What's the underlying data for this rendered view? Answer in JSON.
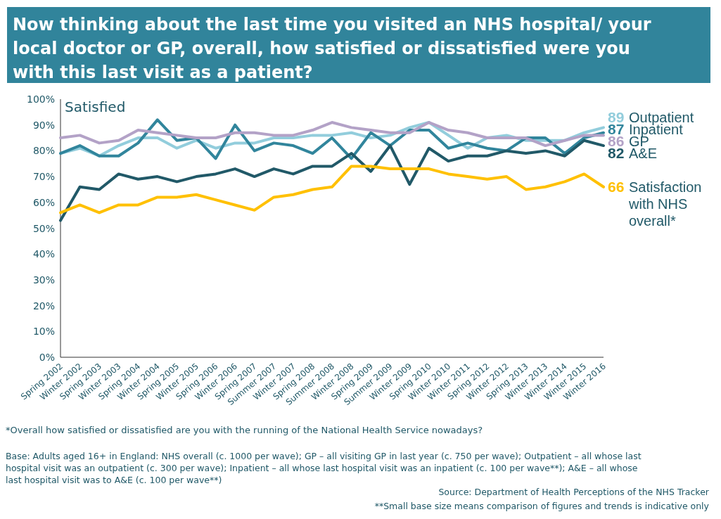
{
  "chart_data": {
    "type": "line",
    "title": "Now thinking about the last time you visited an NHS hospital/ your local doctor or GP, overall, how satisfied or dissatisfied were you with this last visit as a patient?",
    "ylabel": "Satisfied",
    "categories": [
      "Spring 2002",
      "Winter 2002",
      "Spring 2003",
      "Winter 2003",
      "Spring 2004",
      "Winter 2004",
      "Spring 2005",
      "Winter 2005",
      "Spring 2006",
      "Winter 2006",
      "Spring 2007",
      "Summer 2007",
      "Winter 2007",
      "Spring 2008",
      "Summer 2008",
      "Winter 2008",
      "Spring 2009",
      "Summer 2009",
      "Winter 2009",
      "Spring 2010",
      "Winter 2010",
      "Winter 2011",
      "Spring 2012",
      "Winter 2012",
      "Spring 2013",
      "Winter 2013",
      "Winter 2014",
      "Winter 2015",
      "Winter 2016"
    ],
    "ylim": [
      0,
      100
    ],
    "yticks": [
      {
        "value": 0,
        "label": "0%"
      },
      {
        "value": 10,
        "label": "10%"
      },
      {
        "value": 20,
        "label": "20%"
      },
      {
        "value": 30,
        "label": "30%"
      },
      {
        "value": 40,
        "label": "40%"
      },
      {
        "value": 50,
        "label": "50%"
      },
      {
        "value": 60,
        "label": "60%"
      },
      {
        "value": 70,
        "label": "70%"
      },
      {
        "value": 80,
        "label": "80%"
      },
      {
        "value": 90,
        "label": "90%"
      },
      {
        "value": 100,
        "label": "100%"
      }
    ],
    "grid": false,
    "marker": "none",
    "line_style": "solid",
    "series": [
      {
        "name": "Outpatient",
        "color": "#92cddc",
        "values": [
          79,
          81,
          78,
          82,
          85,
          85,
          81,
          84,
          81,
          83,
          83,
          85,
          85,
          86,
          86,
          87,
          85,
          86,
          89,
          91,
          86,
          81,
          85,
          86,
          84,
          84,
          84,
          87,
          89
        ],
        "value_labels": [
          null,
          null,
          null,
          null,
          null,
          null,
          null,
          null,
          null,
          null,
          null,
          null,
          null,
          null,
          null,
          null,
          null,
          null,
          null,
          null,
          null,
          null,
          null,
          null,
          null,
          null,
          null,
          null,
          "89"
        ]
      },
      {
        "name": "Inpatient",
        "color": "#31859c",
        "values": [
          79,
          82,
          78,
          78,
          83,
          92,
          84,
          85,
          77,
          90,
          80,
          83,
          82,
          79,
          85,
          77,
          87,
          82,
          88,
          88,
          81,
          83,
          81,
          80,
          85,
          85,
          79,
          85,
          87
        ],
        "value_labels": [
          null,
          null,
          null,
          null,
          null,
          null,
          null,
          null,
          null,
          null,
          null,
          null,
          null,
          null,
          null,
          null,
          null,
          null,
          null,
          null,
          null,
          null,
          null,
          null,
          null,
          null,
          null,
          null,
          "87"
        ]
      },
      {
        "name": "GP",
        "color": "#b3a2c7",
        "values": [
          85,
          86,
          83,
          84,
          88,
          87,
          86,
          85,
          85,
          87,
          87,
          86,
          86,
          88,
          91,
          89,
          88,
          87,
          87,
          91,
          88,
          87,
          85,
          85,
          85,
          82,
          84,
          86,
          86
        ],
        "value_labels": [
          null,
          null,
          null,
          null,
          null,
          null,
          null,
          null,
          null,
          null,
          null,
          null,
          null,
          null,
          null,
          null,
          null,
          null,
          null,
          null,
          null,
          null,
          null,
          null,
          null,
          null,
          null,
          null,
          "86"
        ]
      },
      {
        "name": "A&E",
        "color": "#215968",
        "values": [
          53,
          66,
          65,
          71,
          69,
          70,
          68,
          70,
          71,
          73,
          70,
          73,
          71,
          74,
          74,
          79,
          72,
          82,
          67,
          81,
          76,
          78,
          78,
          80,
          79,
          80,
          78,
          84,
          82
        ],
        "value_labels": [
          null,
          null,
          null,
          null,
          null,
          null,
          null,
          null,
          null,
          null,
          null,
          null,
          null,
          null,
          null,
          null,
          null,
          null,
          null,
          null,
          null,
          null,
          null,
          null,
          null,
          null,
          null,
          null,
          "82"
        ]
      },
      {
        "name": "Satisfaction with NHS overall*",
        "color": "#ffc000",
        "values": [
          56,
          59,
          56,
          59,
          59,
          62,
          62,
          63,
          61,
          59,
          57,
          62,
          63,
          65,
          66,
          74,
          74,
          73,
          73,
          73,
          71,
          70,
          69,
          70,
          65,
          66,
          68,
          71,
          66
        ],
        "value_labels": [
          null,
          null,
          null,
          null,
          null,
          null,
          null,
          null,
          null,
          null,
          null,
          null,
          null,
          null,
          null,
          null,
          null,
          null,
          null,
          null,
          null,
          null,
          null,
          null,
          null,
          null,
          null,
          null,
          "66"
        ]
      }
    ],
    "annotations": [
      "*Overall how satisfied or dissatisfied are you with the running of the National Health Service nowadays?",
      "Base: Adults aged 16+ in England: NHS overall (c. 1000 per wave); GP – all visiting GP in last year (c. 750 per wave); Outpatient – all whose last hospital visit was an outpatient (c. 300 per wave); Inpatient – all whose last hospital visit was an inpatient  (c. 100 per wave**); A&E – all whose last hospital visit was to A&E (c. 100 per wave**)",
      "Source: Department of Health Perceptions of the NHS Tracker",
      "**Small base size means comparison of figures and trends is indicative only"
    ]
  }
}
